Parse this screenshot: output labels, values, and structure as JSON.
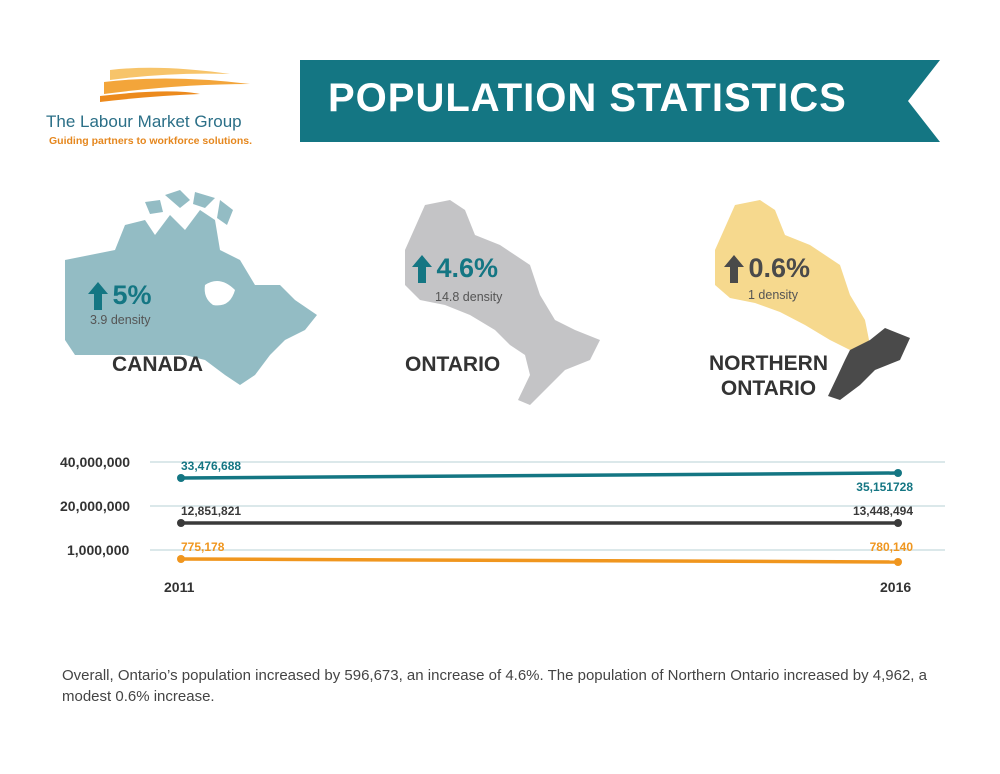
{
  "logo": {
    "name": "The Labour Market Group",
    "tagline": "Guiding partners to workforce solutions."
  },
  "banner": {
    "title": "POPULATION STATISTICS"
  },
  "regions": [
    {
      "name": "CANADA",
      "change": "5%",
      "density": "3.9 density",
      "color": "#93bcc4",
      "value_color": "#147683"
    },
    {
      "name": "ONTARIO",
      "change": "4.6%",
      "density": "14.8 density",
      "color": "#c4c4c6",
      "value_color": "#147683"
    },
    {
      "name_line1": "NORTHERN",
      "name_line2": "ONTARIO",
      "change": "0.6%",
      "density": "1 density",
      "color": "#f6d98e",
      "accent": "#4a4a4a",
      "value_color": "#4a4a4a"
    }
  ],
  "colors": {
    "teal": "#147683",
    "dark": "#3a3a3a",
    "orange": "#f0961e",
    "gridline": "#cfe0e4"
  },
  "chart_data": {
    "type": "line",
    "x": [
      "2011",
      "2016"
    ],
    "y_tick_labels": [
      "40,000,000",
      "20,000,000",
      "1,000,000"
    ],
    "grid": true,
    "series": [
      {
        "values": [
          33476688,
          35151728
        ],
        "labels": [
          "33,476,688",
          "35,151728"
        ],
        "color": "#147683"
      },
      {
        "values": [
          12851821,
          13448494
        ],
        "labels": [
          "12,851,821",
          "13,448,494"
        ],
        "color": "#3a3a3a"
      },
      {
        "values": [
          775178,
          780140
        ],
        "labels": [
          "775,178",
          "780,140"
        ],
        "color": "#f0961e"
      }
    ]
  },
  "footnote": "Overall, Ontario’s population increased by 596,673, an increase of 4.6%. The population of Northern Ontario increased by 4,962, a modest 0.6% increase."
}
